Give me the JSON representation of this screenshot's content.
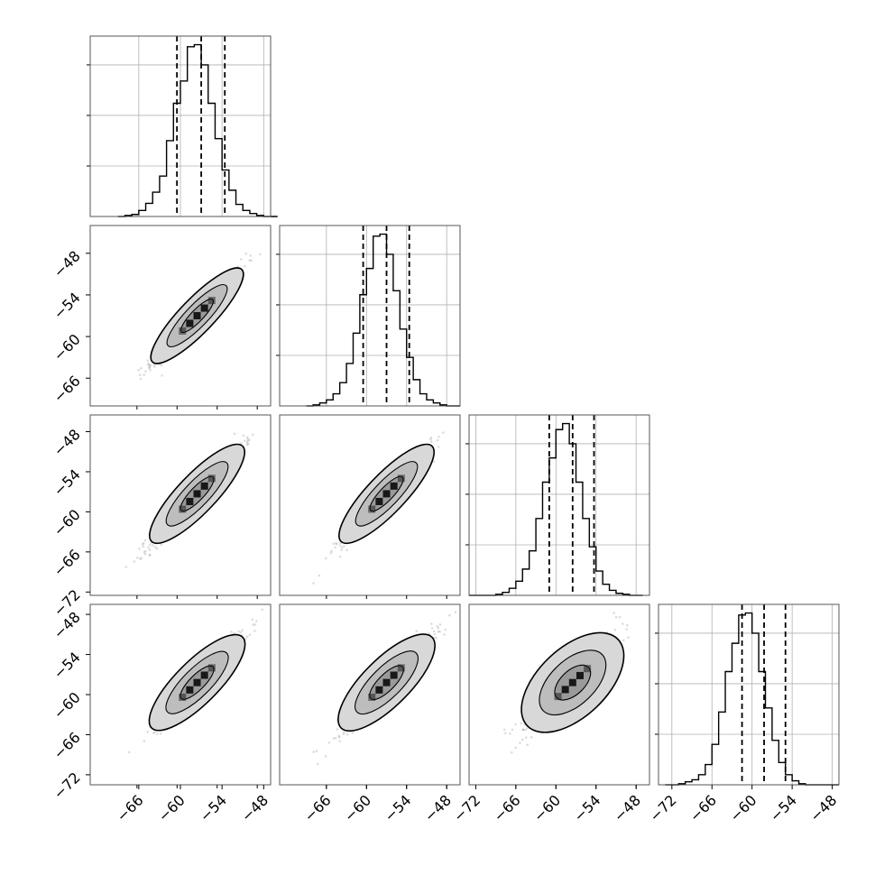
{
  "chart_data": {
    "type": "corner",
    "parameters": [
      "",
      "",
      "",
      ""
    ],
    "diagonal_histograms": [
      {
        "bin_edges": [
          -69,
          -68,
          -67,
          -66,
          -65,
          -64,
          -63,
          -62,
          -61,
          -60,
          -59,
          -58,
          -57,
          -56,
          -55,
          -54,
          -53,
          -52,
          -51,
          -50,
          -49,
          -48,
          -47,
          -46
        ],
        "counts": [
          0,
          1,
          2,
          6,
          13,
          24,
          40,
          75,
          112,
          134,
          168,
          170,
          150,
          112,
          77,
          46,
          26,
          12,
          6,
          3,
          1,
          0,
          0
        ],
        "quantiles": [
          -60.5,
          -57.0,
          -53.6
        ],
        "xlim": [
          -73,
          -47
        ],
        "yticks": [
          0,
          50,
          100,
          150
        ]
      },
      {
        "bin_edges": [
          -69,
          -68,
          -67,
          -66,
          -65,
          -64,
          -63,
          -62,
          -61,
          -60,
          -59,
          -58,
          -57,
          -56,
          -55,
          -54,
          -53,
          -52,
          -51,
          -50,
          -49,
          -48,
          -47,
          -46
        ],
        "counts": [
          0,
          1,
          3,
          6,
          12,
          23,
          42,
          72,
          110,
          136,
          168,
          170,
          150,
          114,
          76,
          48,
          26,
          12,
          6,
          3,
          1,
          0,
          0
        ],
        "quantiles": [
          -60.5,
          -57.0,
          -53.6
        ],
        "xlim": [
          -73,
          -46
        ],
        "yticks": [
          0,
          50,
          100,
          150
        ]
      },
      {
        "bin_edges": [
          -73,
          -72,
          -71,
          -70,
          -69,
          -68,
          -67,
          -66,
          -65,
          -64,
          -63,
          -62,
          -61,
          -60,
          -59,
          -58,
          -57,
          -56,
          -55,
          -54,
          -53,
          -52,
          -51,
          -50,
          -49,
          -48,
          -47
        ],
        "counts": [
          0,
          0,
          0,
          0,
          1,
          3,
          7,
          14,
          26,
          44,
          76,
          112,
          136,
          164,
          170,
          150,
          112,
          76,
          48,
          24,
          11,
          5,
          2,
          1,
          0,
          0
        ],
        "quantiles": [
          -61.0,
          -57.5,
          -54.3
        ],
        "xlim": [
          -73,
          -46
        ],
        "yticks": [
          0,
          50,
          100,
          150
        ]
      },
      {
        "bin_edges": [
          -73,
          -72,
          -71,
          -70,
          -69,
          -68,
          -67,
          -66,
          -65,
          -64,
          -63,
          -62,
          -61,
          -60,
          -59,
          -58,
          -57,
          -56,
          -55,
          -54,
          -53,
          -52,
          -51,
          -50,
          -49,
          -48,
          -47
        ],
        "counts": [
          0,
          0,
          1,
          3,
          5,
          10,
          20,
          40,
          72,
          112,
          140,
          168,
          170,
          150,
          112,
          76,
          44,
          22,
          10,
          4,
          1,
          0,
          0,
          0,
          0,
          0
        ],
        "quantiles": [
          -61.5,
          -58.2,
          -55.0
        ],
        "xlim": [
          -74,
          -47
        ],
        "yticks": [
          0,
          50,
          100,
          150
        ]
      }
    ],
    "scatter_panels": [
      {
        "row": 1,
        "col": 0,
        "xlim": [
          -73,
          -46
        ],
        "ylim": [
          -70,
          -44
        ],
        "center": [
          -57.0,
          -57.0
        ],
        "spread": 3.4,
        "width": 0.8,
        "slope": 1.0,
        "xrange": [
          -69,
          -47.5
        ]
      },
      {
        "row": 2,
        "col": 0,
        "xlim": [
          -73,
          -46
        ],
        "ylim": [
          -72.5,
          -45.5
        ],
        "center": [
          -57.0,
          -57.3
        ],
        "spread": 3.4,
        "width": 0.9,
        "slope": 1.05,
        "xrange": [
          -72,
          -47.5
        ]
      },
      {
        "row": 2,
        "col": 1,
        "xlim": [
          -73,
          -46
        ],
        "ylim": [
          -72.5,
          -45.5
        ],
        "center": [
          -57.0,
          -57.3
        ],
        "spread": 3.4,
        "width": 0.9,
        "slope": 1.05,
        "xrange": [
          -72,
          -47.5
        ]
      },
      {
        "row": 3,
        "col": 0,
        "xlim": [
          -73,
          -46
        ],
        "ylim": [
          -73.5,
          -46.5
        ],
        "center": [
          -57.0,
          -58.2
        ],
        "spread": 3.4,
        "width": 1.0,
        "slope": 1.0,
        "xrange": [
          -70,
          -47
        ]
      },
      {
        "row": 3,
        "col": 1,
        "xlim": [
          -73,
          -46
        ],
        "ylim": [
          -73.5,
          -46.5
        ],
        "center": [
          -57.0,
          -58.2
        ],
        "spread": 3.4,
        "width": 1.1,
        "slope": 1.0,
        "xrange": [
          -71,
          -46
        ]
      },
      {
        "row": 3,
        "col": 2,
        "xlim": [
          -73,
          -46
        ],
        "ylim": [
          -73.5,
          -46.5
        ],
        "center": [
          -57.5,
          -58.2
        ],
        "spread": 3.4,
        "width": 1.6,
        "slope": 0.95,
        "xrange": [
          -70,
          -47
        ]
      }
    ],
    "bottom_xticks": [
      [
        "−66",
        "−60",
        "−54",
        "−48"
      ],
      [
        "−66",
        "−60",
        "−54",
        "−48"
      ],
      [
        "−72",
        "−66",
        "−60",
        "−54",
        "−48"
      ],
      [
        "−72",
        "−66",
        "−60",
        "−54",
        "−48"
      ]
    ],
    "left_yticks": [
      [],
      [
        "−48",
        "−54",
        "−60",
        "−66"
      ],
      [
        "−48",
        "−54",
        "−60",
        "−66",
        "−72"
      ],
      [
        "−48",
        "−54",
        "−60",
        "−66",
        "−72"
      ]
    ],
    "grid": true,
    "colors": {
      "line": "#000000",
      "grid": "#b0b0b0",
      "points": "#444444",
      "fill": "#d0d0d0"
    }
  }
}
